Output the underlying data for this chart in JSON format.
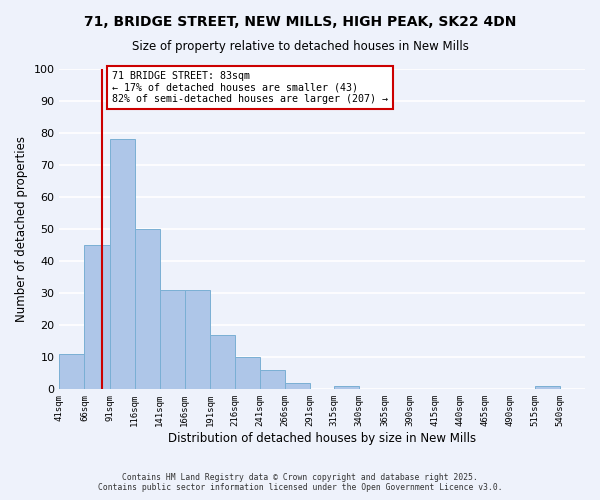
{
  "title": "71, BRIDGE STREET, NEW MILLS, HIGH PEAK, SK22 4DN",
  "subtitle": "Size of property relative to detached houses in New Mills",
  "xlabel": "Distribution of detached houses by size in New Mills",
  "ylabel": "Number of detached properties",
  "bar_values": [
    11,
    45,
    78,
    50,
    31,
    31,
    17,
    10,
    6,
    2,
    0,
    1,
    0,
    0,
    0,
    0,
    0,
    0,
    0,
    1,
    0
  ],
  "bin_edges": [
    41,
    66,
    91,
    116,
    141,
    166,
    191,
    216,
    241,
    266,
    291,
    315,
    340,
    365,
    390,
    415,
    440,
    465,
    490,
    515,
    540,
    565
  ],
  "tick_labels": [
    "41sqm",
    "66sqm",
    "91sqm",
    "116sqm",
    "141sqm",
    "166sqm",
    "191sqm",
    "216sqm",
    "241sqm",
    "266sqm",
    "291sqm",
    "315sqm",
    "340sqm",
    "365sqm",
    "390sqm",
    "415sqm",
    "440sqm",
    "465sqm",
    "490sqm",
    "515sqm",
    "540sqm"
  ],
  "bar_color": "#aec6e8",
  "bar_edge_color": "#7aafd4",
  "vline_x": 83,
  "vline_color": "#cc0000",
  "annotation_title": "71 BRIDGE STREET: 83sqm",
  "annotation_line1": "← 17% of detached houses are smaller (43)",
  "annotation_line2": "82% of semi-detached houses are larger (207) →",
  "annotation_box_edge": "#cc0000",
  "ylim": [
    0,
    100
  ],
  "yticks": [
    0,
    10,
    20,
    30,
    40,
    50,
    60,
    70,
    80,
    90,
    100
  ],
  "background_color": "#eef2fb",
  "grid_color": "#ffffff",
  "footer_line1": "Contains HM Land Registry data © Crown copyright and database right 2025.",
  "footer_line2": "Contains public sector information licensed under the Open Government Licence v3.0."
}
